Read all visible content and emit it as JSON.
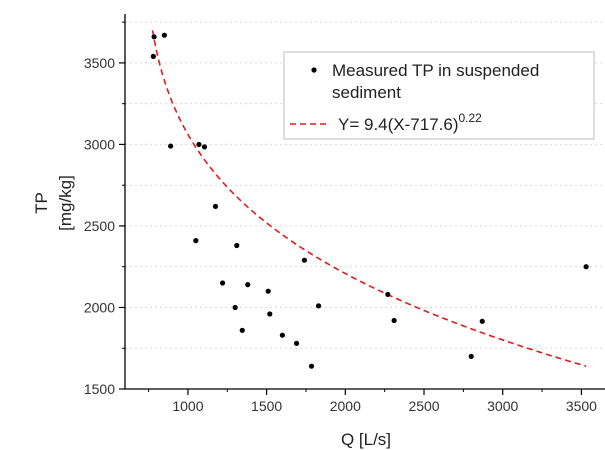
{
  "chart_data": {
    "type": "scatter",
    "title": "",
    "xlabel": "Q [L/s]",
    "ylabel_line1": "TP",
    "ylabel_line2": "[mg/kg]",
    "xlim": [
      600,
      3650
    ],
    "ylim": [
      1500,
      3800
    ],
    "x_ticks": [
      1000,
      1500,
      2000,
      2500,
      3000,
      3500
    ],
    "y_ticks": [
      1500,
      2000,
      2500,
      3000,
      3500
    ],
    "grid": "horizontal dashed",
    "legend_position": "top-right",
    "colors": {
      "points": "#000000",
      "fit": "#e31a1c",
      "grid": "#d9d9d9",
      "axis": "#000000"
    },
    "series": [
      {
        "name": "Measured TP in suspended sediment",
        "kind": "scatter",
        "points": [
          [
            780,
            3540
          ],
          [
            785,
            3660
          ],
          [
            850,
            3670
          ],
          [
            890,
            2990
          ],
          [
            1050,
            2410
          ],
          [
            1070,
            3000
          ],
          [
            1105,
            2985
          ],
          [
            1175,
            2620
          ],
          [
            1220,
            2150
          ],
          [
            1300,
            2000
          ],
          [
            1310,
            2380
          ],
          [
            1345,
            1860
          ],
          [
            1380,
            2140
          ],
          [
            1510,
            2100
          ],
          [
            1520,
            1960
          ],
          [
            1600,
            1830
          ],
          [
            1690,
            1780
          ],
          [
            1740,
            2290
          ],
          [
            1785,
            1640
          ],
          [
            1830,
            2010
          ],
          [
            2270,
            2080
          ],
          [
            2310,
            1920
          ],
          [
            2800,
            1700
          ],
          [
            2870,
            1915
          ],
          [
            3530,
            2250
          ]
        ]
      },
      {
        "name": "Y= 9.4(X-717.6)",
        "name_exponent": "0.22",
        "kind": "fit",
        "coefficient": 9.4,
        "offset": 717.6,
        "exponent": 0.22,
        "x_range": [
          775,
          3530
        ]
      }
    ]
  }
}
